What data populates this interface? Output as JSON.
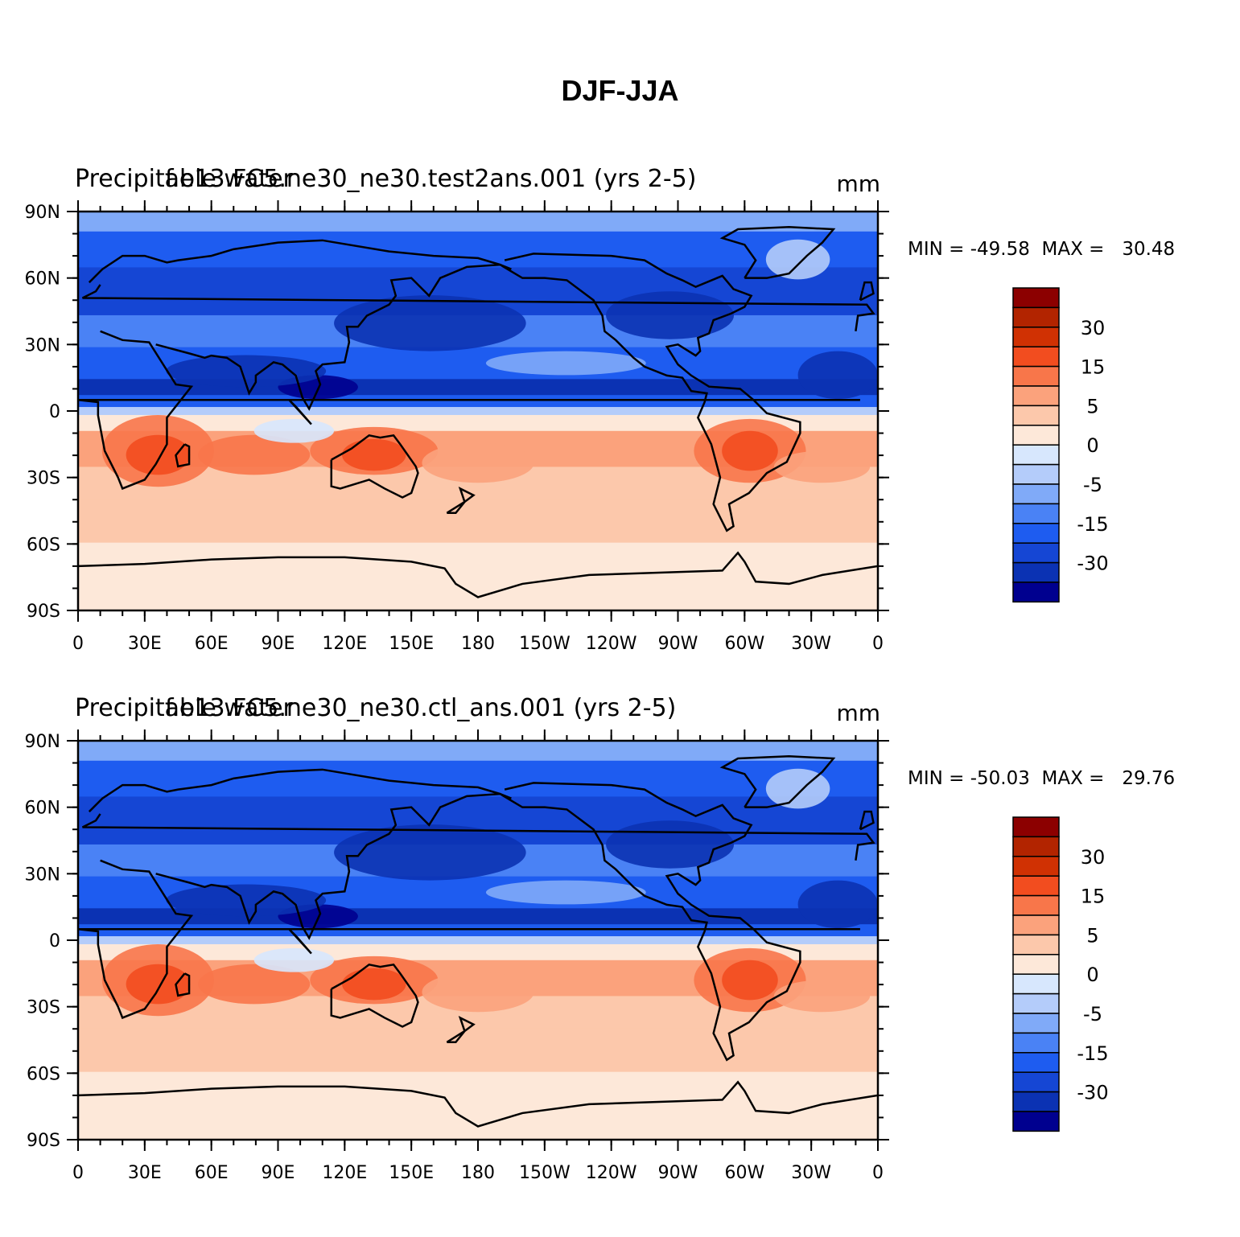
{
  "figure": {
    "title": "DJF-JJA"
  },
  "palette": {
    "levels": [
      "-30",
      "-15",
      "-5",
      "0",
      "5",
      "15",
      "30"
    ],
    "colors": [
      "#00008f",
      "#0b32b3",
      "#1546d4",
      "#1e5cf0",
      "#4a82f5",
      "#80aaf8",
      "#b4ccfa",
      "#d7e7fd",
      "#fde8d9",
      "#fcc8ab",
      "#fba27c",
      "#f8764a",
      "#f24d1f",
      "#d03103",
      "#b22400",
      "#8c0000"
    ]
  },
  "axes": {
    "lon_ticks": [
      "0",
      "30E",
      "60E",
      "90E",
      "120E",
      "150E",
      "180",
      "150W",
      "120W",
      "90W",
      "60W",
      "30W",
      "0"
    ],
    "lat_ticks": [
      "90N",
      "60N",
      "30N",
      "0",
      "30S",
      "60S",
      "90S"
    ]
  },
  "panels": [
    {
      "left_title": "Precipitable water",
      "center_title": "f.e13.FC5.ne30_ne30.test2ans.001 (yrs 2-5)",
      "units": "mm",
      "stats": "MIN = -49.58  MAX =   30.48"
    },
    {
      "left_title": "Precipitable water",
      "center_title": "f.e13.FC5.ne30_ne30.ctl_ans.001 (yrs 2-5)",
      "units": "mm",
      "stats": "MIN = -50.03  MAX =   29.76"
    }
  ]
}
